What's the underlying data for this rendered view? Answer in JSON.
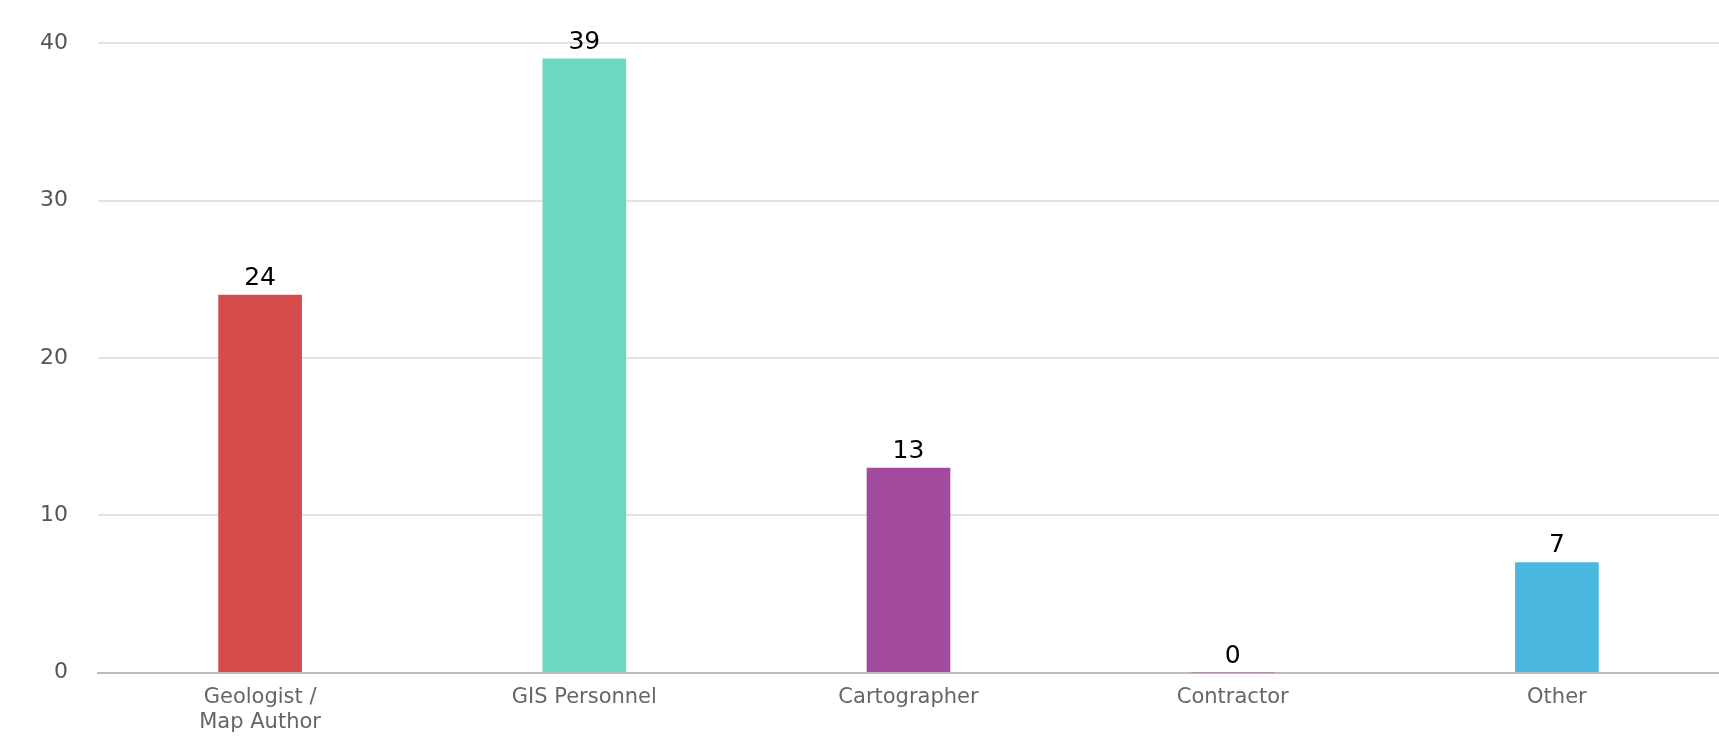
{
  "chart_data": {
    "type": "bar",
    "categories": [
      "Geologist / Map Author",
      "GIS Personnel",
      "Cartographer",
      "Contractor",
      "Other"
    ],
    "values": [
      24,
      39,
      13,
      0,
      7
    ],
    "colors": [
      "#d64b4b",
      "#6cd8c0",
      "#a24a9e",
      "#a24a9e",
      "#4bb8e0"
    ],
    "ylim": [
      0,
      40
    ],
    "yticks": [
      0,
      10,
      20,
      30,
      40
    ],
    "grid": "y",
    "data_labels": true
  }
}
